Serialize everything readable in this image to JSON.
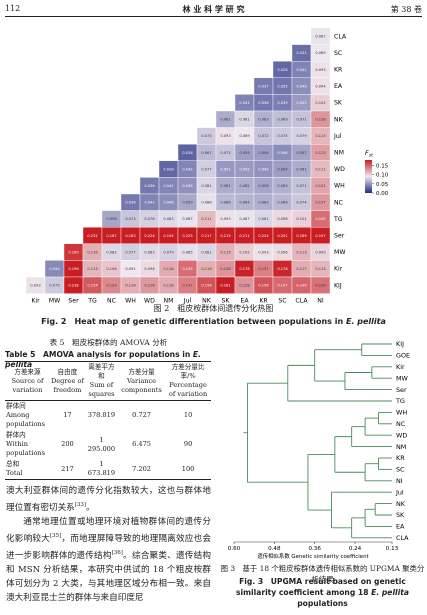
{
  "header": {
    "page": "112",
    "journal": "林 业 科 学 研 究",
    "volume": "第 38 卷"
  },
  "chart_data": [
    {
      "type": "heatmap",
      "columns": [
        "Kir",
        "MW",
        "Ser",
        "TG",
        "NC",
        "WH",
        "WD",
        "NM",
        "Jul",
        "NK",
        "SK",
        "EA",
        "KR",
        "SC",
        "CLA",
        "NI"
      ],
      "rows": [
        "CLA",
        "SC",
        "KR",
        "EA",
        "SK",
        "NK",
        "Jul",
        "NM",
        "WD",
        "WH",
        "NC",
        "TG",
        "Ser",
        "MW",
        "Kir",
        "KIJ"
      ],
      "values": [
        [
          0.087
        ],
        [
          0.031,
          0.089
        ],
        [
          0.028,
          0.041,
          0.093
        ],
        [
          0.037,
          0.035,
          0.046,
          0.094
        ],
        [
          0.041,
          0.036,
          0.039,
          0.052,
          0.102
        ],
        [
          0.061,
          0.081,
          0.063,
          0.069,
          0.071,
          0.128
        ],
        [
          0.075,
          0.093,
          0.089,
          0.072,
          0.075,
          0.079,
          0.113
        ],
        [
          0.026,
          0.067,
          0.073,
          0.055,
          0.054,
          0.046,
          0.057,
          0.123
        ],
        [
          0.028,
          0.042,
          0.077,
          0.051,
          0.052,
          0.049,
          0.054,
          0.061,
          0.111
        ],
        [
          0.036,
          0.042,
          0.048,
          0.081,
          0.061,
          0.062,
          0.058,
          0.063,
          0.071,
          0.121
        ],
        [
          0.036,
          0.041,
          0.046,
          0.059,
          0.086,
          0.066,
          0.064,
          0.062,
          0.066,
          0.074,
          0.127
        ],
        [
          0.058,
          0.073,
          0.078,
          0.083,
          0.087,
          0.111,
          0.093,
          0.087,
          0.081,
          0.098,
          0.101,
          0.145
        ],
        [
          0.232,
          0.187,
          0.183,
          0.224,
          0.194,
          0.225,
          0.217,
          0.215,
          0.211,
          0.224,
          0.201,
          0.189,
          0.197
        ],
        [
          0.169,
          0.116,
          0.082,
          0.077,
          0.083,
          0.079,
          0.085,
          0.081,
          0.115,
          0.102,
          0.093,
          0.096,
          0.113,
          0.099
        ],
        [
          0.044,
          0.196,
          0.113,
          0.106,
          0.091,
          0.096,
          0.118,
          0.145,
          0.116,
          0.128,
          0.178,
          0.137,
          0.176,
          0.117,
          0.113
        ],
        [
          0.093,
          0.075,
          0.238,
          0.154,
          0.133,
          0.116,
          0.126,
          0.118,
          0.137,
          0.156,
          0.181,
          0.128,
          0.156,
          0.147,
          0.149,
          0.143
        ]
      ],
      "colorbar": {
        "title": [
          "F",
          "st"
        ],
        "lim": [
          0,
          0.18
        ],
        "ticks": [
          {
            "value": 0,
            "label": "0.00"
          },
          0.05,
          {
            "value": 0.1,
            "label": "0.10"
          },
          0.15
        ]
      },
      "colors": [
        "#232d82",
        "#efe9f1",
        "#c81e23"
      ]
    },
    {
      "type": "dendrogram",
      "leaves": [
        "KIJ",
        "GOE",
        "Kir",
        "MW",
        "Ser",
        "TG",
        "WH",
        "NC",
        "WD",
        "NM",
        "KR",
        "SC",
        "NI",
        "Jul",
        "NK",
        "SK",
        "EA",
        "CLA"
      ],
      "merges": [
        [
          0,
          1,
          0.22
        ],
        [
          2,
          3,
          0.19
        ],
        [
          19,
          4,
          0.27
        ],
        [
          18,
          20,
          0.36
        ],
        [
          21,
          5,
          0.44
        ],
        [
          6,
          7,
          0.17
        ],
        [
          23,
          8,
          0.21
        ],
        [
          24,
          9,
          0.25
        ],
        [
          10,
          11,
          0.17
        ],
        [
          26,
          12,
          0.21
        ],
        [
          25,
          27,
          0.3
        ],
        [
          14,
          15,
          0.18
        ],
        [
          29,
          16,
          0.21
        ],
        [
          30,
          17,
          0.25
        ],
        [
          13,
          31,
          0.31
        ],
        [
          28,
          32,
          0.38
        ],
        [
          22,
          33,
          0.56
        ]
      ],
      "xlim": [
        0.6,
        0.13
      ],
      "xticks": [
        {
          "value": 0.6,
          "label": "0.60"
        },
        0.48,
        0.36,
        0.24,
        0.13
      ],
      "xlabel": "遗传相似系数 Genetic similarity coefficient",
      "color": "#4a8a5c"
    }
  ],
  "figure2_caption": {
    "cn": "图 2　粗皮桉群体间遗传分化热图",
    "en": [
      "Fig. 2　Heat map of genetic differentiation between populations in ",
      "E. pellita"
    ]
  },
  "table5": {
    "title_cn": "表 5　粗皮桉群体的 AMOVA 分析",
    "title_en": [
      "Table 5　AMOVA analysis for populations in ",
      "E. pellita"
    ],
    "header": [
      [
        "方差来源",
        "Source of variation"
      ],
      [
        "自由度",
        "Degree of freedom"
      ],
      [
        "离差平方和",
        "Sum of squares"
      ],
      [
        "方差分量",
        "Variance components"
      ],
      [
        "方差分量比率/%",
        "Percentage of variation"
      ]
    ],
    "rows": [
      [
        [
          "群体间",
          "Among populations"
        ],
        "17",
        "378.819",
        "0.727",
        "10"
      ],
      [
        [
          "群体内",
          "Within populations"
        ],
        "200",
        "1 295.000",
        "6.475",
        "90"
      ],
      [
        [
          "总和",
          "Total"
        ],
        "217",
        "1 673.819",
        "7.202",
        "100"
      ]
    ]
  },
  "figure3_caption": {
    "cn": "图 3　基于 18 个粗皮桉群体遗传相似系数的 UPGMA 聚类分析结果",
    "en": [
      "Fig. 3　UPGMA result based on genetic similarity coefficient among 18 ",
      "E. pellita",
      " populations"
    ]
  },
  "body": [
    [
      "澳大利亚群体间的遗传分化指数较大，这也与群体地理位置有密切关系",
      "[33]",
      "。"
    ],
    [
      "通常地理位置或地理环境对植物群体间的遗传分化影响较大",
      "[35]",
      "，而地理屏障导致的地理隔离效应也会进一步影响群体的遗传结构",
      "[36]",
      "。综合聚类、遗传结构和 MSN 分析结果，本研究中供试的 18 个粗皮桉群体可划分为 2 大类，与其地理区域分布相一致。来自澳大利亚昆士兰的群体与来自印度尼"
    ]
  ]
}
